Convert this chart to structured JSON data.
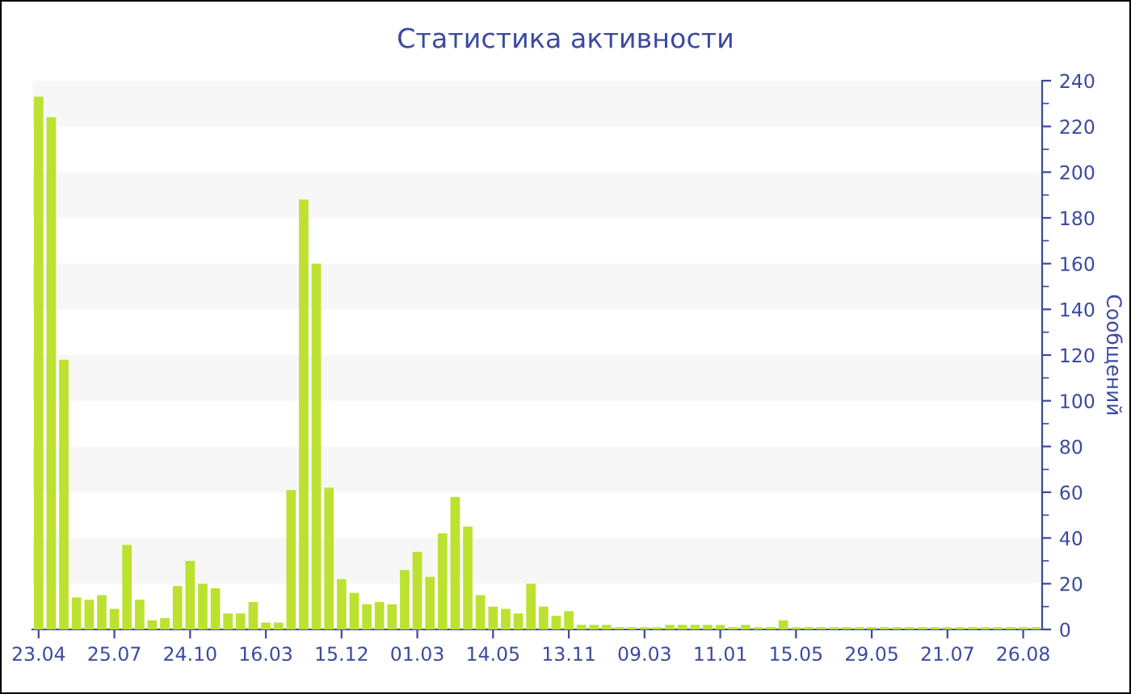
{
  "chart_data": {
    "type": "bar",
    "title": "Статистика активности",
    "ylabel": "Сообщений",
    "categories": [
      "23.04",
      null,
      null,
      null,
      null,
      null,
      "25.07",
      null,
      null,
      null,
      null,
      null,
      "24.10",
      null,
      null,
      null,
      null,
      null,
      "16.03",
      null,
      null,
      null,
      null,
      null,
      "15.12",
      null,
      null,
      null,
      null,
      null,
      "01.03",
      null,
      null,
      null,
      null,
      null,
      "14.05",
      null,
      null,
      null,
      null,
      null,
      "13.11",
      null,
      null,
      null,
      null,
      null,
      "09.03",
      null,
      null,
      null,
      null,
      null,
      "11.01",
      null,
      null,
      null,
      null,
      null,
      "15.05",
      null,
      null,
      null,
      null,
      null,
      "29.05",
      null,
      null,
      null,
      null,
      null,
      "21.07",
      null,
      null,
      null,
      null,
      null,
      "26.08",
      null
    ],
    "values": [
      233,
      224,
      118,
      14,
      13,
      15,
      9,
      37,
      13,
      4,
      5,
      19,
      30,
      20,
      18,
      7,
      7,
      12,
      3,
      3,
      61,
      188,
      160,
      62,
      22,
      16,
      11,
      12,
      11,
      26,
      34,
      23,
      42,
      58,
      45,
      15,
      10,
      9,
      7,
      20,
      10,
      6,
      8,
      2,
      2,
      2,
      1,
      1,
      1,
      1,
      2,
      2,
      2,
      2,
      2,
      1,
      2,
      1,
      1,
      4,
      1,
      1,
      1,
      1,
      1,
      1,
      1,
      1,
      1,
      1,
      1,
      1,
      1,
      1,
      1,
      1,
      1,
      1,
      1,
      1
    ],
    "color": "#bde130",
    "ylim": [
      0,
      240
    ],
    "yticks": [
      0,
      {
        "value": 10,
        "label": null
      },
      20,
      {
        "value": 30,
        "label": null
      },
      40,
      {
        "value": 50,
        "label": null
      },
      60,
      {
        "value": 70,
        "label": null
      },
      80,
      {
        "value": 90,
        "label": null
      },
      100,
      {
        "value": 110,
        "label": null
      },
      120,
      {
        "value": 130,
        "label": null
      },
      140,
      {
        "value": 150,
        "label": null
      },
      160,
      {
        "value": 170,
        "label": null
      },
      180,
      {
        "value": 190,
        "label": null
      },
      200,
      {
        "value": 210,
        "label": null
      },
      220,
      {
        "value": 230,
        "label": null
      },
      240
    ],
    "bands": [
      {
        "axis": "y",
        "from": 20,
        "to": 40,
        "color": "#f7f7f7"
      },
      {
        "axis": "y",
        "from": 60,
        "to": 80,
        "color": "#f7f7f7"
      },
      {
        "axis": "y",
        "from": 100,
        "to": 120,
        "color": "#f7f7f7"
      },
      {
        "axis": "y",
        "from": 140,
        "to": 160,
        "color": "#f7f7f7"
      },
      {
        "axis": "y",
        "from": 180,
        "to": 200,
        "color": "#f7f7f7"
      },
      {
        "axis": "y",
        "from": 220,
        "to": 240,
        "color": "#f7f7f7"
      }
    ]
  }
}
